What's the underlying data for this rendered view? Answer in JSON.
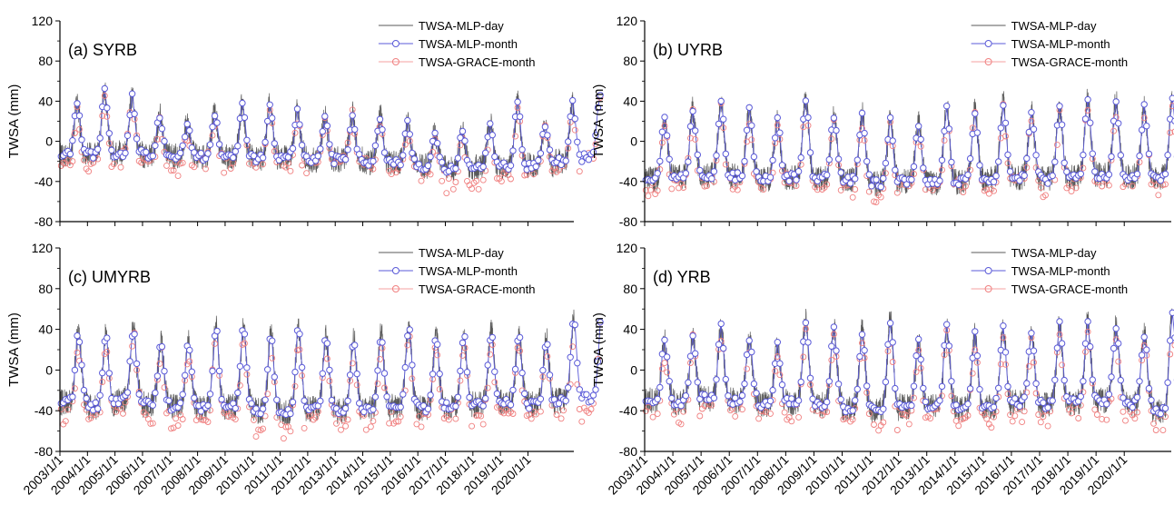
{
  "colors": {
    "day": "#595959",
    "mlp_month_edge": "#5a5ad8",
    "mlp_month_fill": "#ffffff",
    "grace_month": "#f08080"
  },
  "chart_data": [
    {
      "type": "line",
      "panel_label": "(a) SYRB",
      "ylabel": "TWSA (mm)",
      "ylim": [
        -80,
        120
      ],
      "yticks": [
        -80,
        -40,
        0,
        40,
        80,
        120
      ],
      "xlim": [
        "2003/1/1",
        "2021/9/1"
      ],
      "xticks": [
        "2003/1/1",
        "2004/1/1",
        "2005/1/1",
        "2006/1/1",
        "2007/1/1",
        "2008/1/1",
        "2009/1/1",
        "2010/1/1",
        "2011/1/1",
        "2012/1/1",
        "2013/1/1",
        "2014/1/1",
        "2015/1/1",
        "2016/1/1",
        "2017/1/1",
        "2018/1/1",
        "2019/1/1",
        "2020/1/1"
      ],
      "show_xtick_labels": false,
      "legend": [
        "TWSA-MLP-day",
        "TWSA-MLP-month",
        "TWSA-GRACE-month"
      ],
      "legend_position": "top-right",
      "seasonal": {
        "peak_month": 7.5,
        "baseline": [
          -14,
          -13,
          -12,
          -14,
          -15,
          -15,
          -16,
          -17,
          -16,
          -19,
          -18,
          -21,
          -22,
          -25,
          -27,
          -26,
          -25,
          -24,
          -20,
          -15
        ],
        "peak_amplitude": [
          50,
          62,
          58,
          40,
          32,
          43,
          53,
          53,
          46,
          44,
          46,
          47,
          40,
          33,
          38,
          45,
          63,
          42,
          57,
          62
        ],
        "grace_offset": [
          -12,
          -8,
          -6,
          -6,
          -12,
          -8,
          -4,
          -6,
          -14,
          0,
          -2,
          -6,
          -6,
          -12,
          -16,
          -14,
          -8,
          -4,
          -6,
          -4
        ]
      }
    },
    {
      "type": "line",
      "panel_label": "(b) UYRB",
      "ylabel": "TWSA (mm)",
      "ylim": [
        -80,
        120
      ],
      "yticks": [
        -80,
        -40,
        0,
        40,
        80,
        120
      ],
      "xlim": [
        "2003/1/1",
        "2021/9/1"
      ],
      "xticks": [
        "2003/1/1",
        "2004/1/1",
        "2005/1/1",
        "2006/1/1",
        "2007/1/1",
        "2008/1/1",
        "2009/1/1",
        "2010/1/1",
        "2011/1/1",
        "2012/1/1",
        "2013/1/1",
        "2014/1/1",
        "2015/1/1",
        "2016/1/1",
        "2017/1/1",
        "2018/1/1",
        "2019/1/1",
        "2020/1/1"
      ],
      "show_xtick_labels": false,
      "legend": [
        "TWSA-MLP-day",
        "TWSA-MLP-month",
        "TWSA-GRACE-month"
      ],
      "legend_position": "top-right",
      "seasonal": {
        "peak_month": 8.5,
        "baseline": [
          -38,
          -36,
          -34,
          -35,
          -38,
          -36,
          -37,
          -38,
          -42,
          -40,
          -42,
          -40,
          -38,
          -36,
          -38,
          -36,
          -34,
          -35,
          -36,
          -34
        ],
        "peak_amplitude": [
          62,
          68,
          72,
          66,
          62,
          78,
          64,
          66,
          62,
          58,
          76,
          70,
          76,
          66,
          72,
          78,
          74,
          68,
          82,
          86
        ],
        "grace_offset": [
          -10,
          -6,
          -4,
          -8,
          -6,
          -4,
          -6,
          -10,
          -12,
          -6,
          -4,
          -6,
          -8,
          -6,
          -10,
          -6,
          -8,
          -6,
          -10,
          -4
        ]
      }
    },
    {
      "type": "line",
      "panel_label": "(c) UMYRB",
      "ylabel": "TWSA (mm)",
      "ylim": [
        -80,
        120
      ],
      "yticks": [
        -80,
        -40,
        0,
        40,
        80,
        120
      ],
      "xlim": [
        "2003/1/1",
        "2021/9/1"
      ],
      "xticks": [
        "2003/1/1",
        "2004/1/1",
        "2005/1/1",
        "2006/1/1",
        "2007/1/1",
        "2008/1/1",
        "2009/1/1",
        "2010/1/1",
        "2011/1/1",
        "2012/1/1",
        "2013/1/1",
        "2014/1/1",
        "2015/1/1",
        "2016/1/1",
        "2017/1/1",
        "2018/1/1",
        "2019/1/1",
        "2020/1/1"
      ],
      "show_xtick_labels": true,
      "legend": [
        "TWSA-MLP-day",
        "TWSA-MLP-month",
        "TWSA-GRACE-month"
      ],
      "legend_position": "top-right",
      "seasonal": {
        "peak_month": 8.0,
        "baseline": [
          -32,
          -36,
          -30,
          -34,
          -36,
          -38,
          -36,
          -40,
          -42,
          -38,
          -40,
          -38,
          -36,
          -38,
          -36,
          -34,
          -32,
          -34,
          -30,
          -28
        ],
        "peak_amplitude": [
          68,
          70,
          72,
          62,
          64,
          80,
          78,
          76,
          84,
          70,
          72,
          74,
          78,
          70,
          72,
          72,
          66,
          64,
          80,
          78
        ],
        "grace_offset": [
          -14,
          -8,
          -6,
          -10,
          -12,
          -8,
          -10,
          -14,
          -16,
          -10,
          -10,
          -14,
          -12,
          -10,
          -12,
          -12,
          -10,
          -8,
          -14,
          -6
        ]
      }
    },
    {
      "type": "line",
      "panel_label": "(d) YRB",
      "ylabel": "TWSA (mm)",
      "ylim": [
        -80,
        120
      ],
      "yticks": [
        -80,
        -40,
        0,
        40,
        80,
        120
      ],
      "xlim": [
        "2003/1/1",
        "2021/9/1"
      ],
      "xticks": [
        "2003/1/1",
        "2004/1/1",
        "2005/1/1",
        "2006/1/1",
        "2007/1/1",
        "2008/1/1",
        "2009/1/1",
        "2010/1/1",
        "2011/1/1",
        "2012/1/1",
        "2013/1/1",
        "2014/1/1",
        "2015/1/1",
        "2016/1/1",
        "2017/1/1",
        "2018/1/1",
        "2019/1/1",
        "2020/1/1"
      ],
      "show_xtick_labels": true,
      "legend": [
        "TWSA-MLP-day",
        "TWSA-MLP-month",
        "TWSA-GRACE-month"
      ],
      "legend_position": "top-right",
      "seasonal": {
        "peak_month": 8.5,
        "baseline": [
          -30,
          -32,
          -28,
          -30,
          -34,
          -32,
          -34,
          -38,
          -40,
          -36,
          -36,
          -38,
          -36,
          -32,
          -34,
          -32,
          -30,
          -34,
          -40,
          -30
        ],
        "peak_amplitude": [
          58,
          66,
          70,
          62,
          60,
          80,
          74,
          76,
          90,
          64,
          78,
          72,
          78,
          70,
          78,
          80,
          72,
          70,
          100,
          108
        ],
        "grace_offset": [
          -14,
          -10,
          -8,
          -10,
          -12,
          -10,
          -10,
          -12,
          -16,
          -10,
          -8,
          -12,
          -12,
          -10,
          -12,
          -10,
          -10,
          -8,
          -14,
          -8
        ]
      }
    }
  ]
}
